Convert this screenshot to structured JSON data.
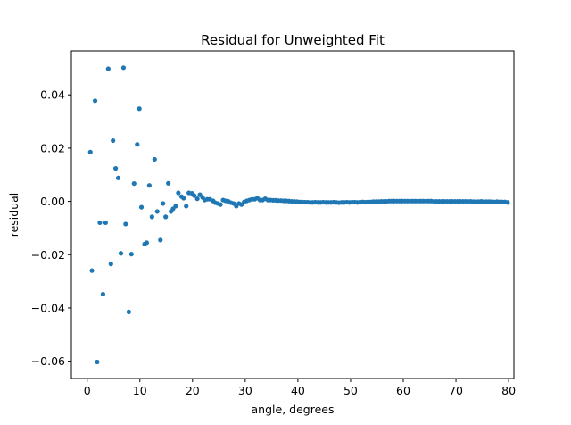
{
  "chart_data": {
    "type": "scatter",
    "title": "Residual for Unweighted Fit",
    "xlabel": "angle, degrees",
    "ylabel": "residual",
    "xlim": [
      -3,
      81
    ],
    "ylim": [
      -0.0665,
      0.0565
    ],
    "xticks": [
      0,
      10,
      20,
      30,
      40,
      50,
      60,
      70,
      80
    ],
    "xtick_labels": [
      "0",
      "10",
      "20",
      "30",
      "40",
      "50",
      "60",
      "70",
      "80"
    ],
    "yticks": [
      -0.06,
      -0.04,
      -0.02,
      0.0,
      0.02,
      0.04
    ],
    "ytick_labels": [
      "−0.06",
      "−0.04",
      "−0.02",
      "0.00",
      "0.02",
      "0.04"
    ],
    "grid": false,
    "marker_color": "#1f77b4",
    "series": [
      {
        "x": [
          0.6,
          0.9,
          1.5,
          1.9,
          2.4,
          3.0,
          3.5,
          4.0,
          4.5,
          4.9,
          5.4,
          5.9,
          6.4,
          6.9,
          7.3,
          7.9,
          8.4,
          8.9,
          9.5,
          9.9,
          10.3,
          10.9,
          11.3,
          11.8,
          12.3,
          12.8,
          13.3,
          13.9,
          14.4,
          14.9,
          15.4,
          15.9,
          16.3,
          16.8,
          17.3,
          17.9,
          18.3,
          18.8,
          19.3,
          19.9,
          20.3,
          20.9,
          21.4,
          21.9,
          22.3,
          22.8,
          23.3,
          23.9,
          24.3,
          24.8,
          25.3,
          25.8,
          26.3,
          26.8,
          27.3,
          27.8,
          28.3,
          28.8,
          29.3,
          29.8,
          30.3,
          30.8,
          31.3,
          31.8,
          32.3,
          32.8,
          33.3,
          33.8
        ],
        "y": [
          0.0185,
          -0.026,
          0.0378,
          -0.0603,
          -0.008,
          -0.0348,
          -0.008,
          0.0498,
          -0.0235,
          0.0228,
          0.0124,
          0.0088,
          -0.0195,
          0.0502,
          -0.0085,
          -0.0415,
          -0.0198,
          0.0067,
          0.0214,
          0.0348,
          -0.0022,
          -0.016,
          -0.0155,
          0.006,
          -0.0058,
          0.0158,
          -0.0038,
          -0.0145,
          -0.0008,
          -0.0058,
          0.0068,
          -0.0038,
          -0.0028,
          -0.0018,
          0.0032,
          0.0018,
          0.0012,
          -0.0018,
          0.0032,
          0.003,
          0.0022,
          0.001,
          0.0025,
          0.0015,
          0.0005,
          0.0008,
          0.0008,
          0.0002,
          -0.0005,
          -0.0008,
          -0.0012,
          0.0005,
          0.0002,
          0.0,
          -0.0005,
          -0.0008,
          -0.0018,
          -0.0008,
          -0.0012,
          -0.0002,
          0.0002,
          0.0005,
          0.0008,
          0.0008,
          0.0012,
          0.0005,
          0.0005,
          0.001
        ]
      },
      {
        "x": [
          34.3,
          34.8,
          35.3,
          35.8,
          36.3,
          36.8,
          37.3,
          37.8,
          38.3,
          38.8,
          39.3,
          39.8,
          40.3,
          40.8,
          41.3,
          41.8,
          42.3,
          42.8,
          43.3,
          43.8,
          44.3,
          44.8,
          45.3,
          45.8,
          46.3,
          46.8,
          47.3,
          47.8,
          48.3,
          48.8,
          49.3,
          49.8,
          50.3,
          50.8,
          51.3,
          51.8,
          52.3,
          52.8,
          53.3,
          53.8,
          54.3,
          54.8,
          55.3,
          55.8,
          56.3,
          56.8,
          57.3,
          57.8,
          58.3,
          58.8,
          59.3,
          59.8,
          60.3,
          60.8,
          61.3,
          61.8,
          62.3,
          62.8,
          63.3,
          63.8,
          64.3,
          64.8,
          65.3,
          65.8,
          66.3,
          66.8,
          67.3,
          67.8,
          68.3,
          68.8,
          69.3,
          69.8,
          70.3,
          70.8,
          71.3,
          71.8,
          72.3,
          72.8,
          73.3,
          73.8,
          74.3,
          74.8,
          75.3,
          75.8,
          76.3,
          76.8,
          77.3,
          77.8,
          78.3,
          78.8,
          79.3,
          79.8
        ],
        "y": [
          0.0005,
          0.0005,
          0.0004,
          0.0004,
          0.0003,
          0.0003,
          0.0002,
          0.0002,
          0.0001,
          0.0,
          0.0,
          -0.0001,
          -0.0002,
          -0.0002,
          -0.0003,
          -0.0003,
          -0.0004,
          -0.0004,
          -0.0003,
          -0.0004,
          -0.0004,
          -0.0003,
          -0.0004,
          -0.0004,
          -0.0004,
          -0.0003,
          -0.0004,
          -0.0005,
          -0.0004,
          -0.0004,
          -0.0003,
          -0.0004,
          -0.0003,
          -0.0003,
          -0.0004,
          -0.0003,
          -0.0002,
          -0.0003,
          -0.0002,
          -0.0002,
          -0.0001,
          -0.0001,
          -0.0001,
          0.0,
          0.0,
          0.0,
          0.0001,
          0.0001,
          0.0001,
          0.0001,
          0.0001,
          0.0001,
          0.0001,
          0.0001,
          0.0001,
          0.0001,
          0.0001,
          0.0001,
          0.0001,
          0.0001,
          0.0001,
          0.0001,
          0.0001,
          0.0,
          0.0,
          0.0,
          0.0,
          0.0,
          0.0,
          0.0,
          0.0,
          0.0,
          0.0,
          0.0,
          0.0,
          0.0,
          0.0,
          0.0,
          -0.0001,
          -0.0001,
          -0.0001,
          0.0,
          -0.0001,
          -0.0001,
          -0.0001,
          -0.0001,
          -0.0002,
          -0.0001,
          -0.0002,
          -0.0002,
          -0.0002,
          -0.0004
        ]
      }
    ]
  }
}
